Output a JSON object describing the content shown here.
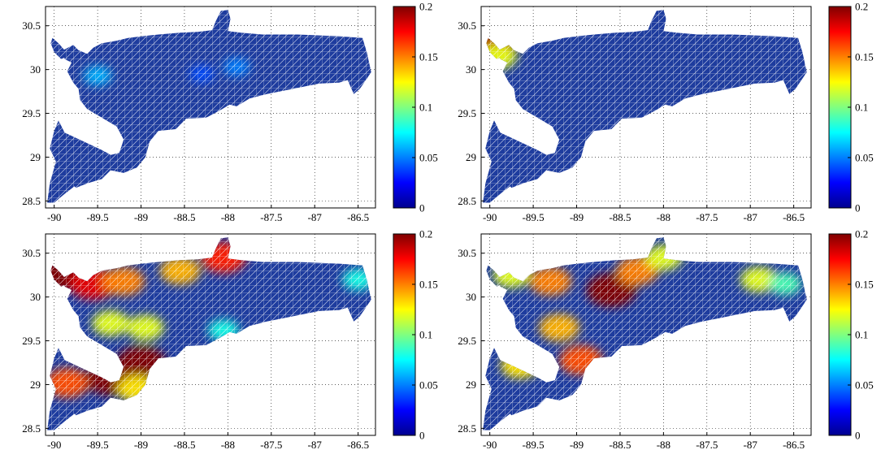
{
  "chart_data": [
    {
      "type": "heatmap",
      "panel": "top-left",
      "xticks": [
        "-90",
        "-89.5",
        "-89",
        "-88.5",
        "-88",
        "-87.5",
        "-87",
        "-86.5"
      ],
      "yticks": [
        "28.5",
        "29",
        "29.5",
        "30",
        "30.5"
      ],
      "xlim": [
        -90.1,
        -86.3
      ],
      "ylim": [
        28.42,
        30.72
      ],
      "grid": true,
      "colorbar": {
        "ticks": [
          "0",
          "0.05",
          "0.1",
          "0.15",
          "0.2"
        ],
        "range": [
          0,
          0.2
        ]
      },
      "hotspots": [
        {
          "x": -89.5,
          "y": 29.93,
          "value": 0.06
        },
        {
          "x": -87.9,
          "y": 30.03,
          "value": 0.05
        },
        {
          "x": -88.3,
          "y": 29.95,
          "value": 0.04
        }
      ]
    },
    {
      "type": "heatmap",
      "panel": "top-right",
      "xticks": [
        "-90",
        "-89.5",
        "-89",
        "-88.5",
        "-88",
        "-87.5",
        "-87",
        "-86.5"
      ],
      "yticks": [
        "28.5",
        "29",
        "29.5",
        "30",
        "30.5"
      ],
      "xlim": [
        -90.1,
        -86.3
      ],
      "ylim": [
        28.42,
        30.72
      ],
      "grid": true,
      "colorbar": {
        "ticks": [
          "0",
          "0.05",
          "0.1",
          "0.15",
          "0.2"
        ],
        "range": [
          0,
          0.2
        ]
      },
      "hotspots": [
        {
          "x": -89.97,
          "y": 30.25,
          "value": 0.19
        },
        {
          "x": -89.9,
          "y": 30.15,
          "value": 0.12
        }
      ]
    },
    {
      "type": "heatmap",
      "panel": "bottom-left",
      "xticks": [
        "-90",
        "-89.5",
        "-89",
        "-88.5",
        "-88",
        "-87.5",
        "-87",
        "-86.5"
      ],
      "yticks": [
        "28.5",
        "29",
        "29.5",
        "30",
        "30.5"
      ],
      "xlim": [
        -90.1,
        -86.3
      ],
      "ylim": [
        28.42,
        30.72
      ],
      "grid": true,
      "colorbar": {
        "ticks": [
          "0",
          "0.05",
          "0.1",
          "0.15",
          "0.2"
        ],
        "range": [
          0,
          0.2
        ]
      },
      "hotspots": [
        {
          "x": -89.97,
          "y": 30.25,
          "value": 0.2
        },
        {
          "x": -89.55,
          "y": 30.15,
          "value": 0.18
        },
        {
          "x": -89.2,
          "y": 30.18,
          "value": 0.15
        },
        {
          "x": -88.55,
          "y": 30.3,
          "value": 0.14
        },
        {
          "x": -88.05,
          "y": 30.45,
          "value": 0.17
        },
        {
          "x": -89.35,
          "y": 29.7,
          "value": 0.12
        },
        {
          "x": -88.95,
          "y": 29.65,
          "value": 0.12
        },
        {
          "x": -88.05,
          "y": 29.62,
          "value": 0.08
        },
        {
          "x": -89.85,
          "y": 29.02,
          "value": 0.16
        },
        {
          "x": -89.35,
          "y": 29.07,
          "value": 0.2
        },
        {
          "x": -89.0,
          "y": 29.25,
          "value": 0.2
        },
        {
          "x": -89.05,
          "y": 28.95,
          "value": 0.13
        },
        {
          "x": -86.5,
          "y": 30.2,
          "value": 0.08
        }
      ]
    },
    {
      "type": "heatmap",
      "panel": "bottom-right",
      "xticks": [
        "-90",
        "-89.5",
        "-89",
        "-88.5",
        "-88",
        "-87.5",
        "-87",
        "-86.5"
      ],
      "yticks": [
        "28.5",
        "29",
        "29.5",
        "30",
        "30.5"
      ],
      "xlim": [
        -90.1,
        -86.3
      ],
      "ylim": [
        28.42,
        30.72
      ],
      "grid": true,
      "colorbar": {
        "ticks": [
          "0",
          "0.05",
          "0.1",
          "0.15",
          "0.2"
        ],
        "range": [
          0,
          0.2
        ]
      },
      "hotspots": [
        {
          "x": -88.6,
          "y": 30.08,
          "value": 0.2
        },
        {
          "x": -88.3,
          "y": 30.3,
          "value": 0.15
        },
        {
          "x": -89.3,
          "y": 30.18,
          "value": 0.15
        },
        {
          "x": -89.75,
          "y": 30.25,
          "value": 0.12
        },
        {
          "x": -89.2,
          "y": 29.65,
          "value": 0.14
        },
        {
          "x": -88.95,
          "y": 29.28,
          "value": 0.16
        },
        {
          "x": -89.65,
          "y": 29.22,
          "value": 0.13
        },
        {
          "x": -86.9,
          "y": 30.2,
          "value": 0.12
        },
        {
          "x": -86.6,
          "y": 30.15,
          "value": 0.09
        },
        {
          "x": -88.0,
          "y": 30.45,
          "value": 0.12
        }
      ]
    }
  ]
}
